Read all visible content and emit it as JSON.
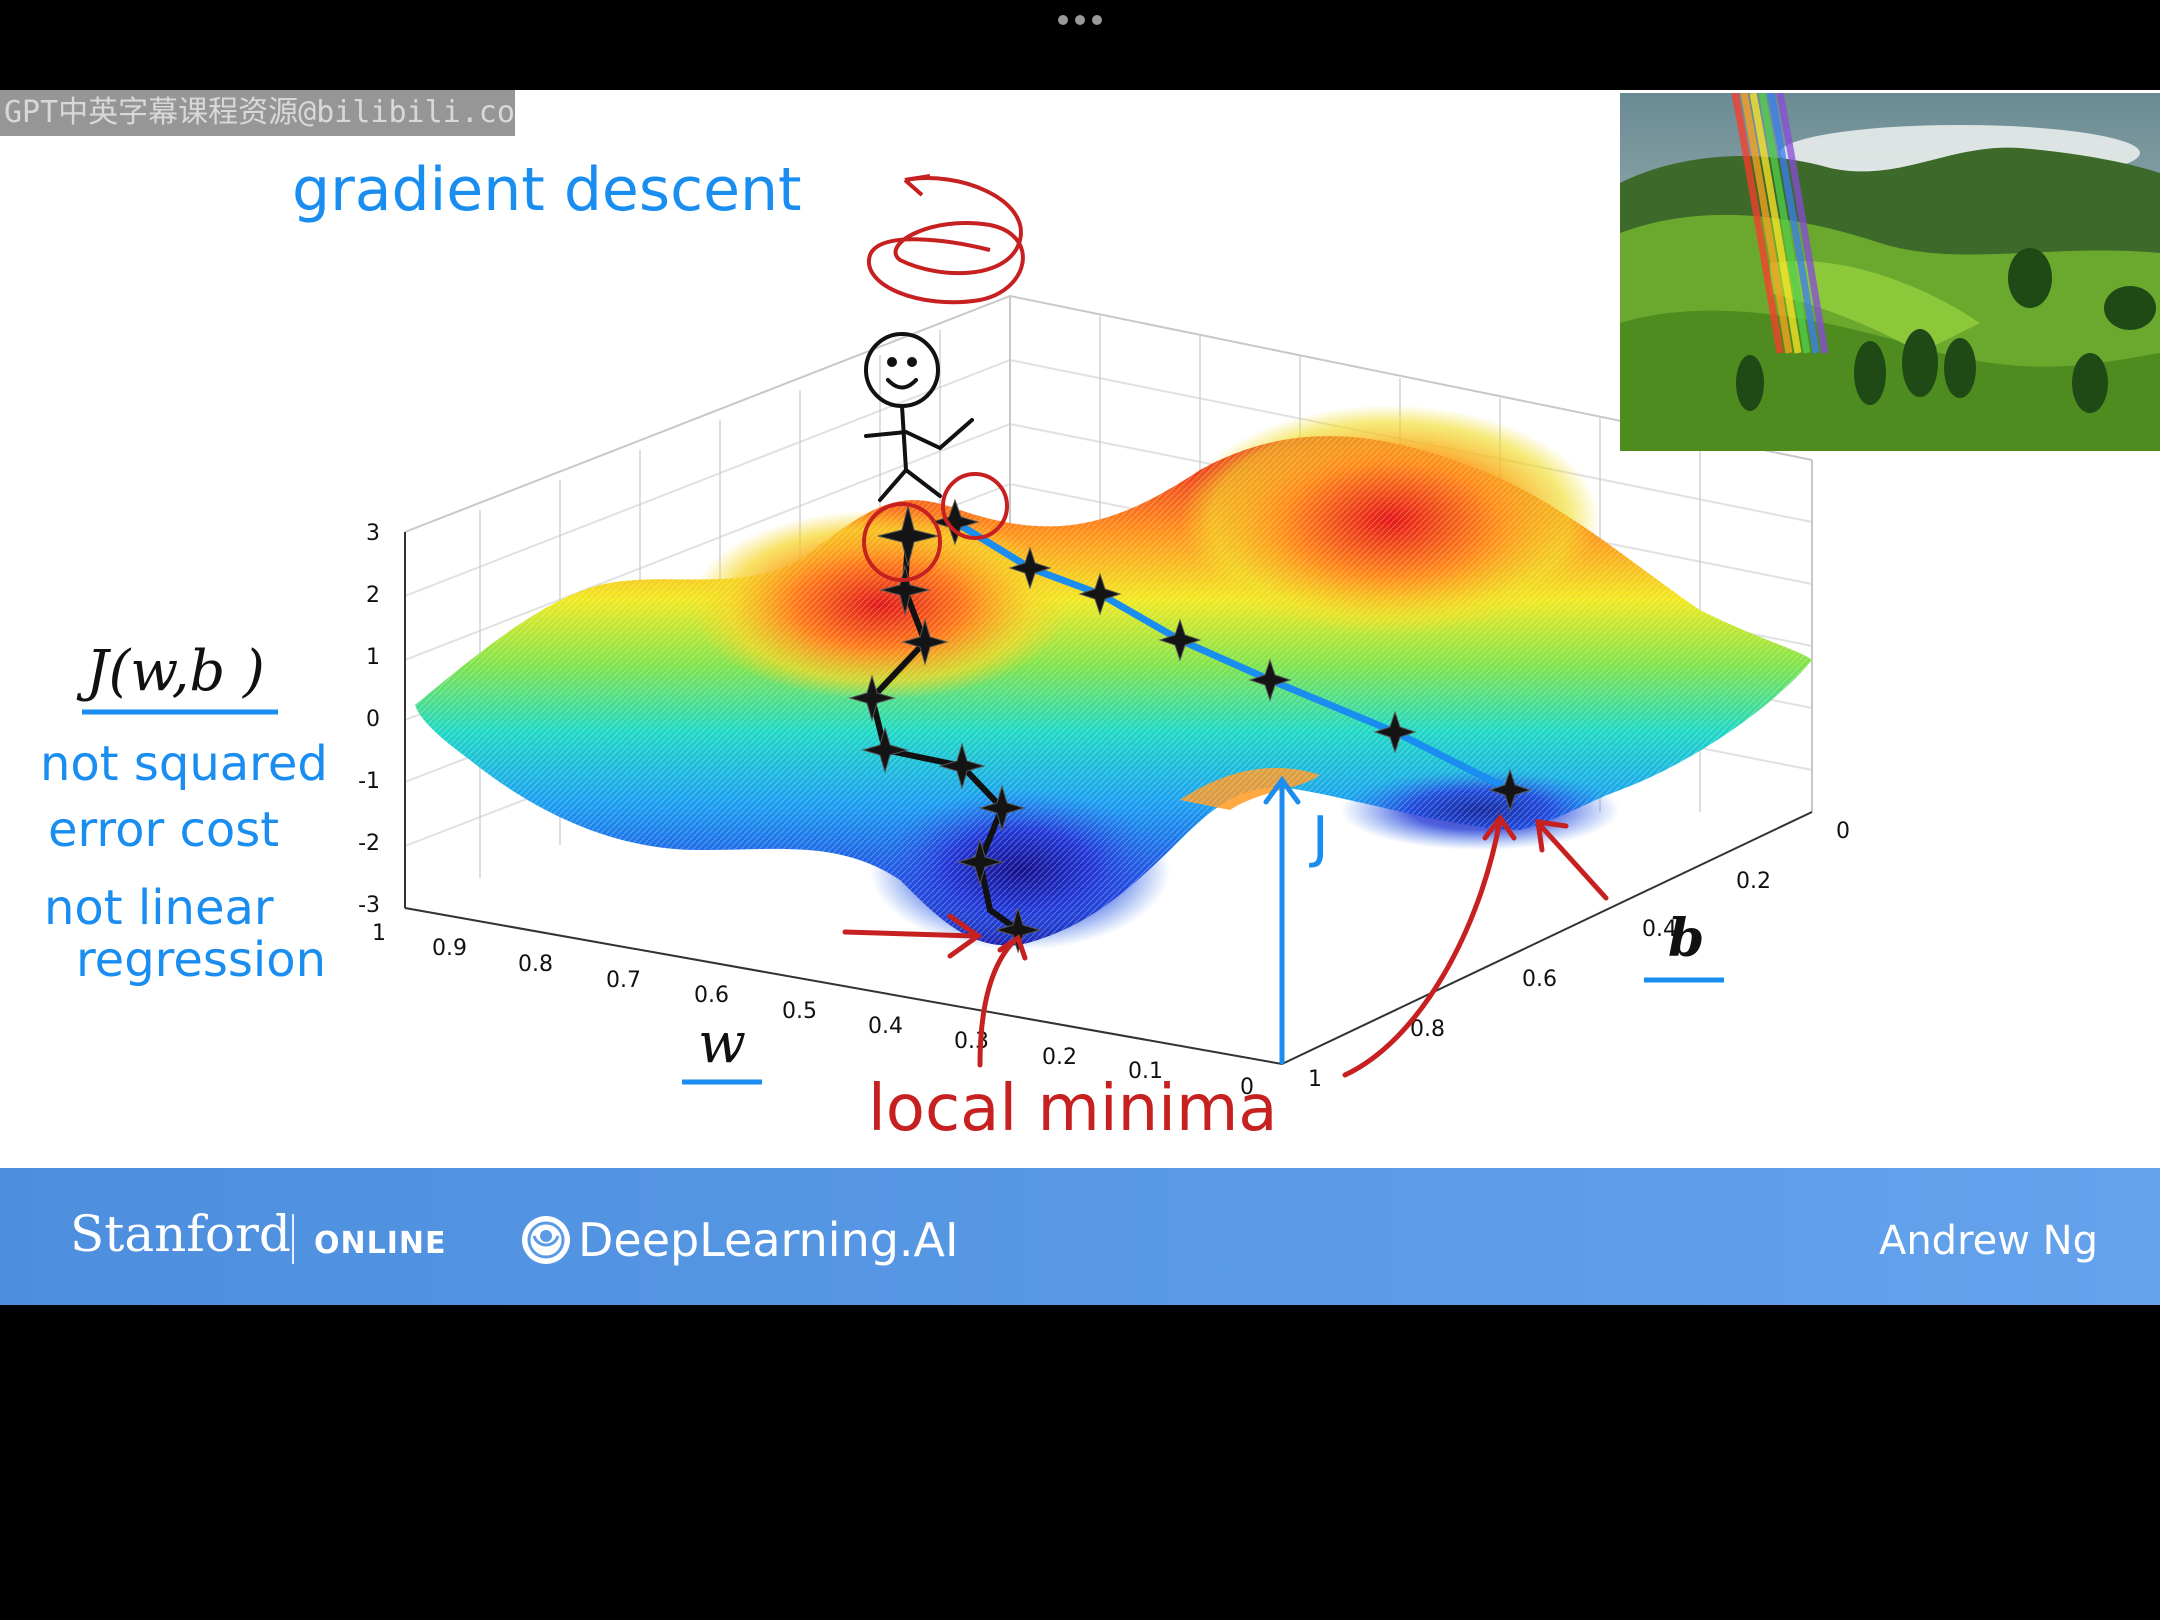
{
  "watermark": "GPT中英字幕课程资源@bilibili.com",
  "slide": {
    "title": "gradient descent",
    "cost_label": "J(w,b )",
    "notes": [
      "not squared",
      "error cost",
      "not linear",
      "regression"
    ],
    "axis_w_label": "w",
    "axis_b_label": "b",
    "j_label": "J",
    "minima_label": "local minima",
    "z_ticks": [
      "3",
      "2",
      "1",
      "0",
      "-1",
      "-2",
      "-3"
    ],
    "w_ticks": [
      "1",
      "0.9",
      "0.8",
      "0.7",
      "0.6",
      "0.5",
      "0.4",
      "0.3",
      "0.2",
      "0.1",
      "0"
    ],
    "b_ticks": [
      "0",
      "0.2",
      "0.4",
      "0.6",
      "0.8",
      "1"
    ]
  },
  "footer": {
    "stanford": "Stanford",
    "online": "ONLINE",
    "deeplearning": "DeepLearning.AI",
    "presenter": "Andrew Ng"
  },
  "colors": {
    "ink_blue": "#1a8ef0",
    "ink_red": "#c62020",
    "footer_blue": "#5a9ae6"
  },
  "icons": {
    "menu": "more-horizontal-icon",
    "logo": "deeplearning-ai-logo"
  }
}
